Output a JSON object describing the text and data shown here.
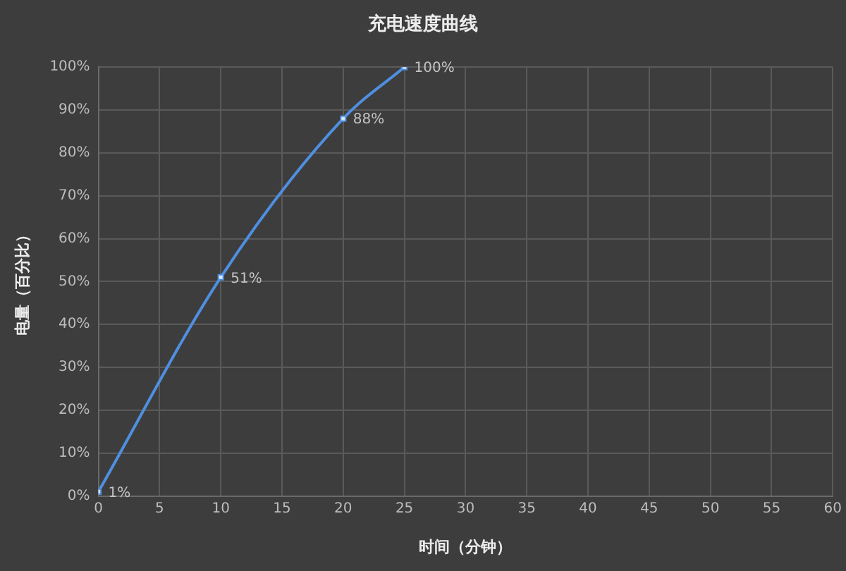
{
  "chart_data": {
    "type": "line",
    "title": "充电速度曲线",
    "xlabel": "时间（分钟）",
    "ylabel": "电量（百分比）",
    "x": [
      0,
      10,
      20,
      25
    ],
    "values": [
      1,
      51,
      88,
      100
    ],
    "color": "#4f8fe0",
    "value_labels": [
      "1%",
      "51%",
      "88%",
      "100%"
    ],
    "xlim": [
      0,
      60
    ],
    "xticks": [
      0,
      5,
      10,
      15,
      20,
      25,
      30,
      35,
      40,
      45,
      50,
      55,
      60
    ],
    "ylim": [
      0,
      100
    ],
    "yticks": [
      {
        "value": 0,
        "label": "0%"
      },
      {
        "value": 10,
        "label": "10%"
      },
      {
        "value": 20,
        "label": "20%"
      },
      {
        "value": 30,
        "label": "30%"
      },
      {
        "value": 40,
        "label": "40%"
      },
      {
        "value": 50,
        "label": "50%"
      },
      {
        "value": 60,
        "label": "60%"
      },
      {
        "value": 70,
        "label": "70%"
      },
      {
        "value": 80,
        "label": "80%"
      },
      {
        "value": 90,
        "label": "90%"
      },
      {
        "value": 100,
        "label": "100%"
      }
    ],
    "grid": true,
    "marker": "square"
  }
}
